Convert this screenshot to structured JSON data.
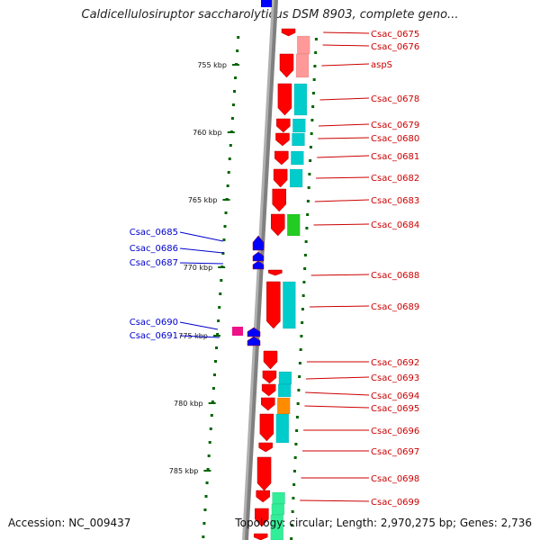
{
  "title": "Caldicellulosiruptor saccharolyticus DSM 8903, complete geno...",
  "footer": {
    "accession": "Accession: NC_009437",
    "summary": "Topology: circular; Length: 2,970,275 bp; Genes: 2,736"
  },
  "colors": {
    "forward_cds": "#ff0000",
    "reverse_cds": "#0000ff",
    "backbone": "#808080",
    "tick": "#006400",
    "cog_cyan": "#00cccc",
    "cog_green": "#22cc22",
    "cog_pink": "#ff9999",
    "cog_orange": "#ff8c00",
    "cog_magenta": "#ee1188",
    "cog_mint": "#33ee99",
    "label_forward": "#cc0000",
    "label_reverse": "#0000cc"
  },
  "scale_ticks": [
    "755 kbp",
    "760 kbp",
    "765 kbp",
    "770 kbp",
    "775 kbp",
    "780 kbp",
    "785 kbp"
  ],
  "right_labels": [
    "Csac_0675",
    "Csac_0676",
    "aspS",
    "Csac_0678",
    "Csac_0679",
    "Csac_0680",
    "Csac_0681",
    "Csac_0682",
    "Csac_0683",
    "Csac_0684",
    "Csac_0688",
    "Csac_0689",
    "Csac_0692",
    "Csac_0693",
    "Csac_0694",
    "Csac_0695",
    "Csac_0696",
    "Csac_0697",
    "Csac_0698",
    "Csac_0699"
  ],
  "left_labels": [
    "Csac_0685",
    "Csac_0686",
    "Csac_0687",
    "Csac_0690",
    "Csac_0691"
  ]
}
